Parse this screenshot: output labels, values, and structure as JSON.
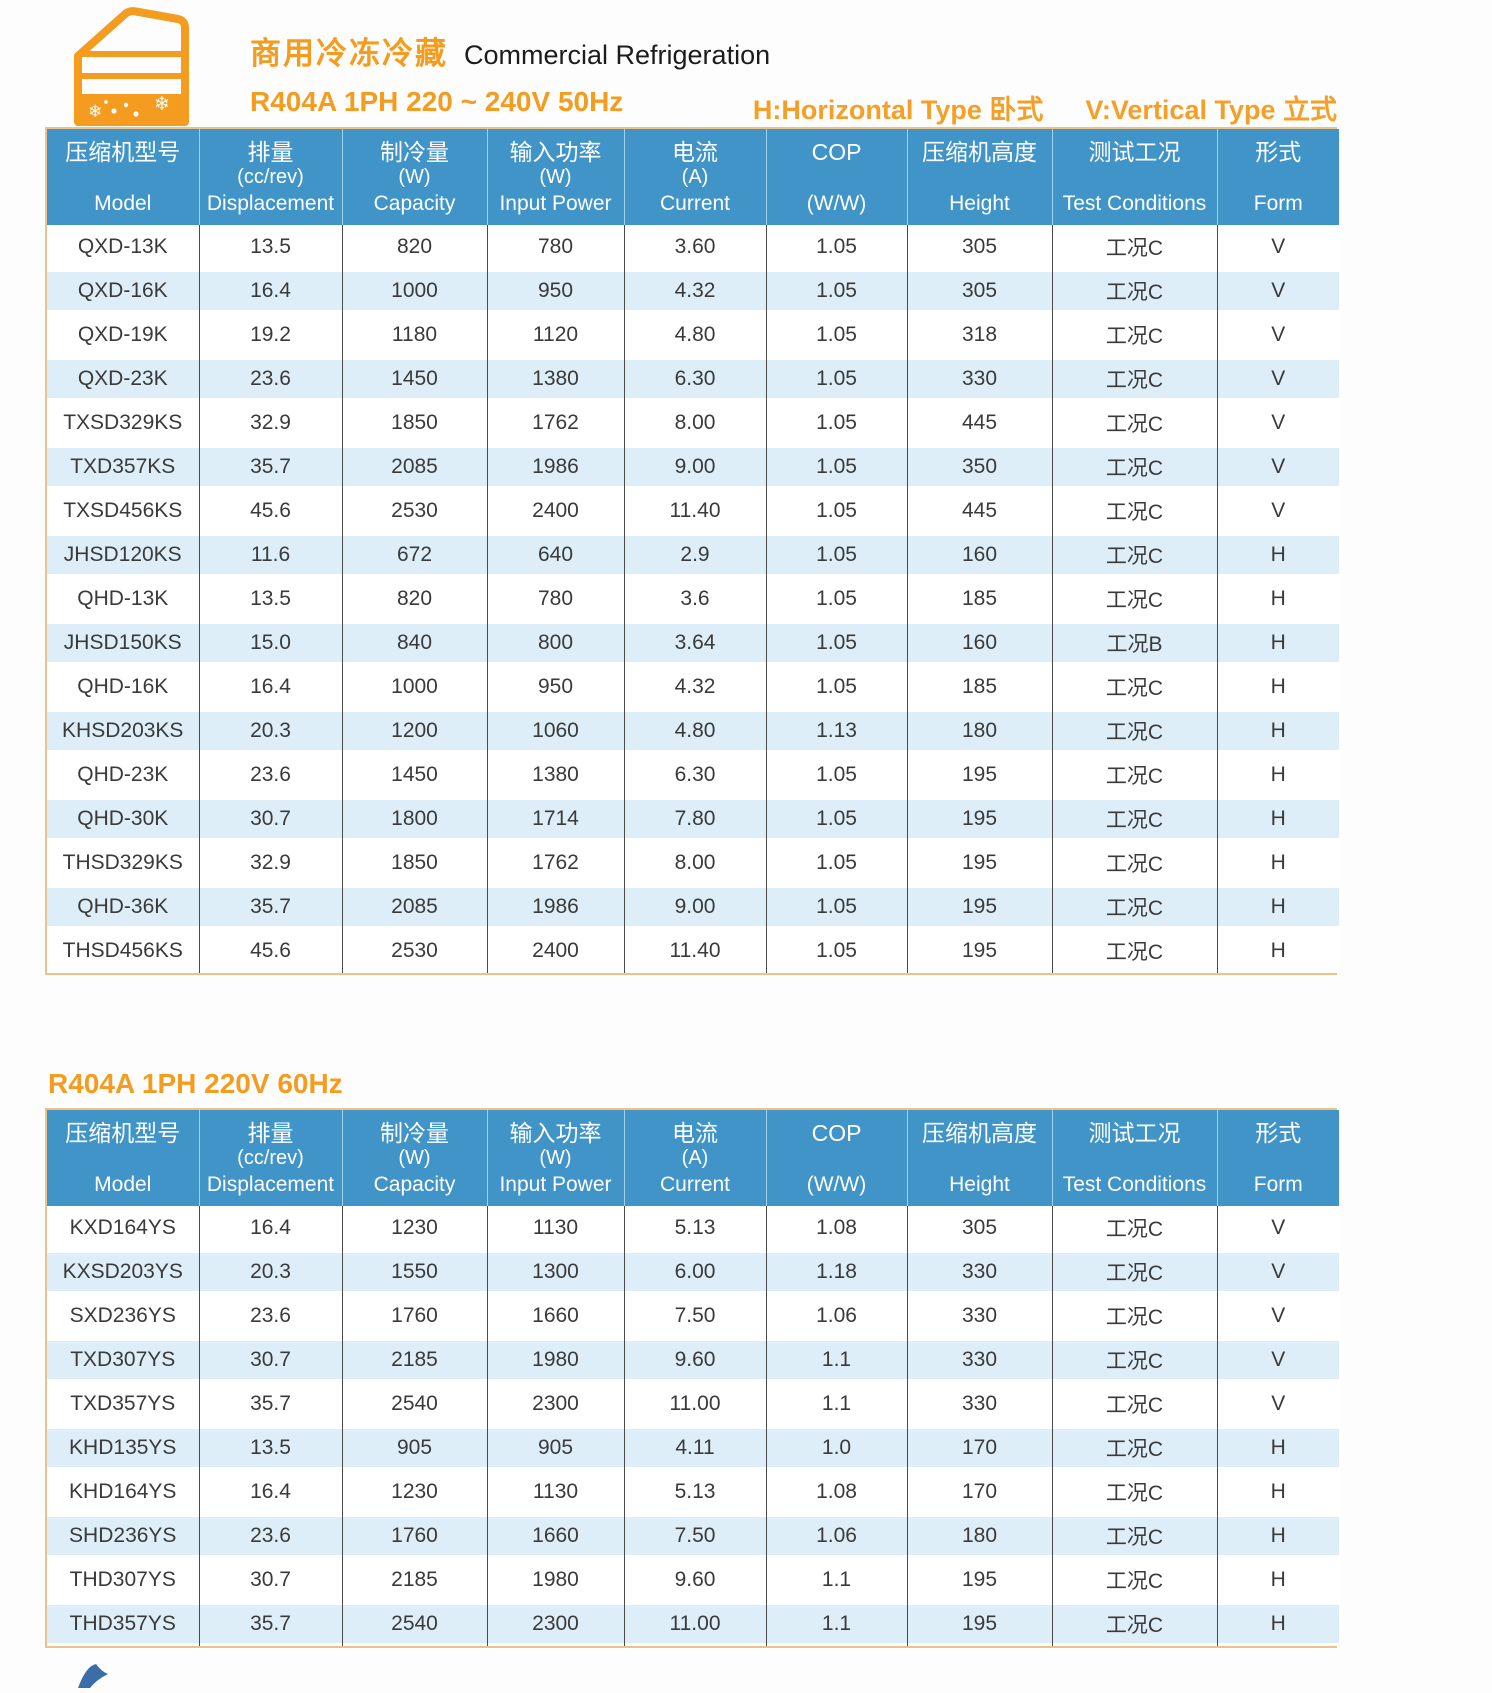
{
  "page": {
    "header": {
      "title_zh": "商用冷冻冷藏",
      "title_en": "Commercial Refrigeration",
      "subtitle_50hz": "R404A 1PH 220 ~ 240V 50Hz",
      "legend_h": "H:Horizontal Type 卧式",
      "legend_v": "V:Vertical Type 立式",
      "icon": "refrigerated-display-case-icon"
    },
    "section2_title": "R404A 1PH 220V 60Hz",
    "colors": {
      "accent_orange": "#F49C1F",
      "header_blue": "#4094C8",
      "row_alt_blue": "#DDEEF8",
      "table_border_tan": "#ECC288"
    }
  },
  "table_headers": {
    "columns": [
      {
        "key": "model",
        "zh": "压缩机型号",
        "unit": "",
        "en": "Model"
      },
      {
        "key": "displacement",
        "zh": "排量",
        "unit": "(cc/rev)",
        "en": "Displacement"
      },
      {
        "key": "capacity",
        "zh": "制冷量",
        "unit": "(W)",
        "en": "Capacity"
      },
      {
        "key": "input-power",
        "zh": "输入功率",
        "unit": "(W)",
        "en": "Input Power"
      },
      {
        "key": "current",
        "zh": "电流",
        "unit": "(A)",
        "en": "Current"
      },
      {
        "key": "cop",
        "zh": "COP",
        "unit": "",
        "en": "(W/W)"
      },
      {
        "key": "height",
        "zh": "压缩机高度",
        "unit": "",
        "en": "Height"
      },
      {
        "key": "test-conditions",
        "zh": "测试工况",
        "unit": "",
        "en": "Test Conditions"
      },
      {
        "key": "form",
        "zh": "形式",
        "unit": "",
        "en": "Form"
      }
    ]
  },
  "table_50hz": {
    "rows": [
      [
        "QXD-13K",
        "13.5",
        "820",
        "780",
        "3.60",
        "1.05",
        "305",
        "工况C",
        "V"
      ],
      [
        "QXD-16K",
        "16.4",
        "1000",
        "950",
        "4.32",
        "1.05",
        "305",
        "工况C",
        "V"
      ],
      [
        "QXD-19K",
        "19.2",
        "1180",
        "1120",
        "4.80",
        "1.05",
        "318",
        "工况C",
        "V"
      ],
      [
        "QXD-23K",
        "23.6",
        "1450",
        "1380",
        "6.30",
        "1.05",
        "330",
        "工况C",
        "V"
      ],
      [
        "TXSD329KS",
        "32.9",
        "1850",
        "1762",
        "8.00",
        "1.05",
        "445",
        "工况C",
        "V"
      ],
      [
        "TXD357KS",
        "35.7",
        "2085",
        "1986",
        "9.00",
        "1.05",
        "350",
        "工况C",
        "V"
      ],
      [
        "TXSD456KS",
        "45.6",
        "2530",
        "2400",
        "11.40",
        "1.05",
        "445",
        "工况C",
        "V"
      ],
      [
        "JHSD120KS",
        "11.6",
        "672",
        "640",
        "2.9",
        "1.05",
        "160",
        "工况C",
        "H"
      ],
      [
        "QHD-13K",
        "13.5",
        "820",
        "780",
        "3.6",
        "1.05",
        "185",
        "工况C",
        "H"
      ],
      [
        "JHSD150KS",
        "15.0",
        "840",
        "800",
        "3.64",
        "1.05",
        "160",
        "工况B",
        "H"
      ],
      [
        "QHD-16K",
        "16.4",
        "1000",
        "950",
        "4.32",
        "1.05",
        "185",
        "工况C",
        "H"
      ],
      [
        "KHSD203KS",
        "20.3",
        "1200",
        "1060",
        "4.80",
        "1.13",
        "180",
        "工况C",
        "H"
      ],
      [
        "QHD-23K",
        "23.6",
        "1450",
        "1380",
        "6.30",
        "1.05",
        "195",
        "工况C",
        "H"
      ],
      [
        "QHD-30K",
        "30.7",
        "1800",
        "1714",
        "7.80",
        "1.05",
        "195",
        "工况C",
        "H"
      ],
      [
        "THSD329KS",
        "32.9",
        "1850",
        "1762",
        "8.00",
        "1.05",
        "195",
        "工况C",
        "H"
      ],
      [
        "QHD-36K",
        "35.7",
        "2085",
        "1986",
        "9.00",
        "1.05",
        "195",
        "工况C",
        "H"
      ],
      [
        "THSD456KS",
        "45.6",
        "2530",
        "2400",
        "11.40",
        "1.05",
        "195",
        "工况C",
        "H"
      ]
    ]
  },
  "table_60hz": {
    "rows": [
      [
        "KXD164YS",
        "16.4",
        "1230",
        "1130",
        "5.13",
        "1.08",
        "305",
        "工况C",
        "V"
      ],
      [
        "KXSD203YS",
        "20.3",
        "1550",
        "1300",
        "6.00",
        "1.18",
        "330",
        "工况C",
        "V"
      ],
      [
        "SXD236YS",
        "23.6",
        "1760",
        "1660",
        "7.50",
        "1.06",
        "330",
        "工况C",
        "V"
      ],
      [
        "TXD307YS",
        "30.7",
        "2185",
        "1980",
        "9.60",
        "1.1",
        "330",
        "工况C",
        "V"
      ],
      [
        "TXD357YS",
        "35.7",
        "2540",
        "2300",
        "11.00",
        "1.1",
        "330",
        "工况C",
        "V"
      ],
      [
        "KHD135YS",
        "13.5",
        "905",
        "905",
        "4.11",
        "1.0",
        "170",
        "工况C",
        "H"
      ],
      [
        "KHD164YS",
        "16.4",
        "1230",
        "1130",
        "5.13",
        "1.08",
        "170",
        "工况C",
        "H"
      ],
      [
        "SHD236YS",
        "23.6",
        "1760",
        "1660",
        "7.50",
        "1.06",
        "180",
        "工况C",
        "H"
      ],
      [
        "THD307YS",
        "30.7",
        "2185",
        "1980",
        "9.60",
        "1.1",
        "195",
        "工况C",
        "H"
      ],
      [
        "THD357YS",
        "35.7",
        "2540",
        "2300",
        "11.00",
        "1.1",
        "195",
        "工况C",
        "H"
      ]
    ]
  }
}
